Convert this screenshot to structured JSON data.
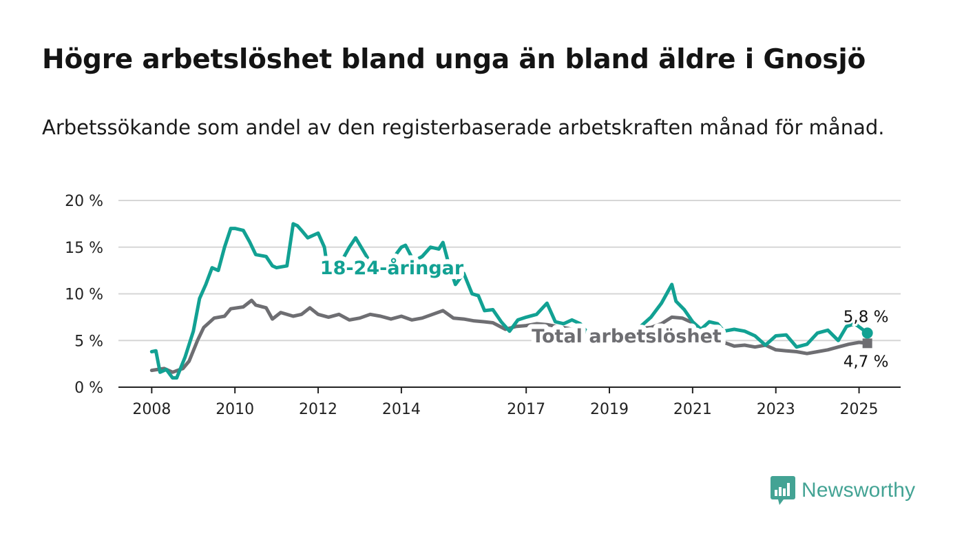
{
  "title": "Högre arbetslöshet bland unga än bland äldre i Gnosjö",
  "subtitle": "Arbetssökande som andel av den registerbaserade arbetskraften månad för månad.",
  "brand": {
    "name": "Newsworthy",
    "color": "#43a394",
    "icon": "newsworthy-logo-icon"
  },
  "chart_data": {
    "type": "line",
    "ylim": [
      0,
      20
    ],
    "xlim": [
      2007.2,
      2026.0
    ],
    "grid": "horizontal",
    "y_ticks": [
      {
        "value": 0,
        "label": "0 %"
      },
      {
        "value": 5,
        "label": "5 %"
      },
      {
        "value": 10,
        "label": "10 %"
      },
      {
        "value": 15,
        "label": "15 %"
      },
      {
        "value": 20,
        "label": "20 %"
      }
    ],
    "x_ticks": [
      {
        "value": 2008,
        "label": "2008"
      },
      {
        "value": 2010,
        "label": "2010"
      },
      {
        "value": 2012,
        "label": "2012"
      },
      {
        "value": 2014,
        "label": "2014"
      },
      {
        "value": 2017,
        "label": "2017"
      },
      {
        "value": 2019,
        "label": "2019"
      },
      {
        "value": 2021,
        "label": "2021"
      },
      {
        "value": 2023,
        "label": "2023"
      },
      {
        "value": 2025,
        "label": "2025"
      }
    ],
    "series": [
      {
        "name": "Total arbetslöshet",
        "color": "#6e6e72",
        "end_label": "4,7 %",
        "points": [
          [
            2008.0,
            1.8
          ],
          [
            2008.3,
            2.0
          ],
          [
            2008.5,
            1.6
          ],
          [
            2008.75,
            2.0
          ],
          [
            2008.9,
            2.8
          ],
          [
            2009.1,
            5.0
          ],
          [
            2009.25,
            6.4
          ],
          [
            2009.5,
            7.4
          ],
          [
            2009.75,
            7.6
          ],
          [
            2009.9,
            8.4
          ],
          [
            2010.2,
            8.6
          ],
          [
            2010.4,
            9.3
          ],
          [
            2010.5,
            8.8
          ],
          [
            2010.75,
            8.5
          ],
          [
            2010.9,
            7.3
          ],
          [
            2011.1,
            8.0
          ],
          [
            2011.4,
            7.6
          ],
          [
            2011.6,
            7.8
          ],
          [
            2011.8,
            8.5
          ],
          [
            2012.0,
            7.8
          ],
          [
            2012.25,
            7.5
          ],
          [
            2012.5,
            7.8
          ],
          [
            2012.75,
            7.2
          ],
          [
            2013.0,
            7.4
          ],
          [
            2013.25,
            7.8
          ],
          [
            2013.5,
            7.6
          ],
          [
            2013.75,
            7.3
          ],
          [
            2014.0,
            7.6
          ],
          [
            2014.25,
            7.2
          ],
          [
            2014.5,
            7.4
          ],
          [
            2014.75,
            7.8
          ],
          [
            2015.0,
            8.2
          ],
          [
            2015.25,
            7.4
          ],
          [
            2015.5,
            7.3
          ],
          [
            2015.75,
            7.1
          ],
          [
            2016.0,
            7.0
          ],
          [
            2016.2,
            6.9
          ],
          [
            2016.5,
            6.2
          ],
          [
            2016.75,
            6.5
          ],
          [
            2017.0,
            6.6
          ],
          [
            2017.25,
            6.8
          ],
          [
            2017.5,
            6.7
          ],
          [
            2017.75,
            6.5
          ],
          [
            2018.0,
            6.3
          ],
          [
            2018.25,
            6.0
          ],
          [
            2018.5,
            5.9
          ],
          [
            2018.75,
            5.8
          ],
          [
            2019.0,
            5.7
          ],
          [
            2019.25,
            5.8
          ],
          [
            2019.5,
            6.0
          ],
          [
            2019.75,
            6.3
          ],
          [
            2020.0,
            6.4
          ],
          [
            2020.25,
            6.8
          ],
          [
            2020.5,
            7.5
          ],
          [
            2020.75,
            7.4
          ],
          [
            2021.0,
            6.9
          ],
          [
            2021.25,
            6.0
          ],
          [
            2021.5,
            5.5
          ],
          [
            2021.75,
            4.8
          ],
          [
            2022.0,
            4.4
          ],
          [
            2022.25,
            4.5
          ],
          [
            2022.5,
            4.3
          ],
          [
            2022.75,
            4.5
          ],
          [
            2023.0,
            4.0
          ],
          [
            2023.25,
            3.9
          ],
          [
            2023.5,
            3.8
          ],
          [
            2023.75,
            3.6
          ],
          [
            2024.0,
            3.8
          ],
          [
            2024.25,
            4.0
          ],
          [
            2024.5,
            4.3
          ],
          [
            2024.75,
            4.6
          ],
          [
            2025.0,
            4.8
          ],
          [
            2025.2,
            4.7
          ]
        ]
      },
      {
        "name": "18-24-åringar",
        "color": "#12a193",
        "end_label": "5,8 %",
        "points": [
          [
            2008.0,
            3.8
          ],
          [
            2008.1,
            3.9
          ],
          [
            2008.2,
            1.6
          ],
          [
            2008.35,
            1.9
          ],
          [
            2008.5,
            1.0
          ],
          [
            2008.6,
            1.0
          ],
          [
            2008.8,
            3.2
          ],
          [
            2009.0,
            6.0
          ],
          [
            2009.15,
            9.5
          ],
          [
            2009.3,
            11.0
          ],
          [
            2009.45,
            12.8
          ],
          [
            2009.6,
            12.5
          ],
          [
            2009.75,
            15.0
          ],
          [
            2009.9,
            17.0
          ],
          [
            2010.0,
            17.0
          ],
          [
            2010.2,
            16.8
          ],
          [
            2010.35,
            15.6
          ],
          [
            2010.5,
            14.2
          ],
          [
            2010.75,
            14.0
          ],
          [
            2010.9,
            13.0
          ],
          [
            2011.0,
            12.8
          ],
          [
            2011.25,
            13.0
          ],
          [
            2011.4,
            17.5
          ],
          [
            2011.5,
            17.3
          ],
          [
            2011.6,
            16.8
          ],
          [
            2011.75,
            16.0
          ],
          [
            2012.0,
            16.5
          ],
          [
            2012.15,
            15.0
          ],
          [
            2012.25,
            12.0
          ],
          [
            2012.5,
            13.0
          ],
          [
            2012.75,
            15.0
          ],
          [
            2012.9,
            16.0
          ],
          [
            2013.1,
            14.5
          ],
          [
            2013.3,
            13.0
          ],
          [
            2013.5,
            12.5
          ],
          [
            2013.75,
            13.5
          ],
          [
            2014.0,
            15.0
          ],
          [
            2014.1,
            15.2
          ],
          [
            2014.3,
            13.5
          ],
          [
            2014.5,
            14.0
          ],
          [
            2014.7,
            15.0
          ],
          [
            2014.9,
            14.8
          ],
          [
            2015.0,
            15.5
          ],
          [
            2015.15,
            13.0
          ],
          [
            2015.3,
            11.0
          ],
          [
            2015.5,
            12.2
          ],
          [
            2015.7,
            10.0
          ],
          [
            2015.85,
            9.8
          ],
          [
            2016.0,
            8.2
          ],
          [
            2016.2,
            8.3
          ],
          [
            2016.4,
            7.0
          ],
          [
            2016.6,
            6.0
          ],
          [
            2016.8,
            7.2
          ],
          [
            2017.0,
            7.5
          ],
          [
            2017.25,
            7.8
          ],
          [
            2017.5,
            9.0
          ],
          [
            2017.7,
            7.0
          ],
          [
            2017.9,
            6.8
          ],
          [
            2018.1,
            7.2
          ],
          [
            2018.3,
            6.8
          ],
          [
            2018.5,
            5.7
          ],
          [
            2018.8,
            5.0
          ],
          [
            2019.0,
            4.8
          ],
          [
            2019.25,
            5.2
          ],
          [
            2019.5,
            5.8
          ],
          [
            2019.75,
            6.5
          ],
          [
            2020.0,
            7.5
          ],
          [
            2020.25,
            9.0
          ],
          [
            2020.5,
            11.0
          ],
          [
            2020.6,
            9.2
          ],
          [
            2020.8,
            8.3
          ],
          [
            2021.0,
            7.0
          ],
          [
            2021.2,
            6.2
          ],
          [
            2021.4,
            7.0
          ],
          [
            2021.6,
            6.8
          ],
          [
            2021.75,
            6.0
          ],
          [
            2022.0,
            6.2
          ],
          [
            2022.25,
            6.0
          ],
          [
            2022.5,
            5.5
          ],
          [
            2022.75,
            4.5
          ],
          [
            2023.0,
            5.5
          ],
          [
            2023.25,
            5.6
          ],
          [
            2023.5,
            4.3
          ],
          [
            2023.75,
            4.6
          ],
          [
            2024.0,
            5.8
          ],
          [
            2024.25,
            6.1
          ],
          [
            2024.5,
            5.0
          ],
          [
            2024.7,
            6.5
          ],
          [
            2024.9,
            6.8
          ],
          [
            2025.2,
            5.8
          ]
        ]
      }
    ]
  }
}
